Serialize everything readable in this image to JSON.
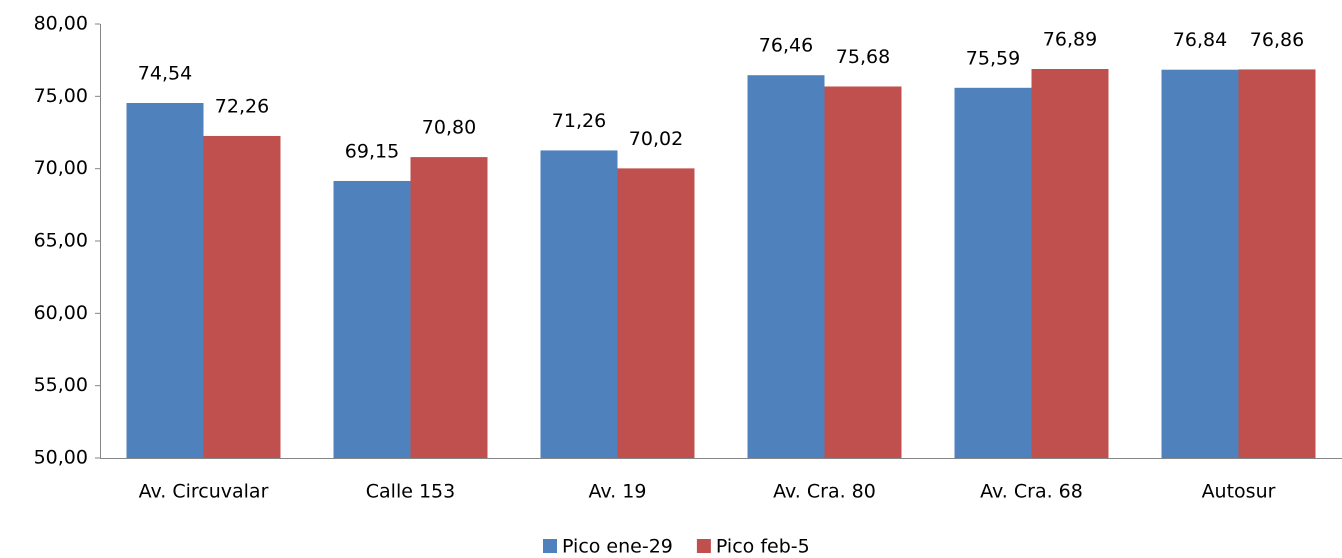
{
  "chart_data": {
    "type": "bar",
    "categories": [
      "Av. Circuvalar",
      "Calle 153",
      "Av. 19",
      "Av. Cra. 80",
      "Av. Cra. 68",
      "Autosur"
    ],
    "series": [
      {
        "name": "Pico ene-29",
        "color": "#4f81bd",
        "values": [
          74.54,
          69.15,
          71.26,
          76.46,
          75.59,
          76.84
        ],
        "value_labels": [
          "74,54",
          "69,15",
          "71,26",
          "76,46",
          "75,59",
          "76,84"
        ]
      },
      {
        "name": "Pico feb-5",
        "color": "#c0504d",
        "values": [
          72.26,
          70.8,
          70.02,
          75.68,
          76.89,
          76.86
        ],
        "value_labels": [
          "72,26",
          "70,80",
          "70,02",
          "75,68",
          "76,89",
          "76,86"
        ]
      }
    ],
    "ylim": [
      50,
      80
    ],
    "yticks": [
      {
        "value": 50,
        "label": "50,00"
      },
      {
        "value": 55,
        "label": "55,00"
      },
      {
        "value": 60,
        "label": "60,00"
      },
      {
        "value": 65,
        "label": "65,00"
      },
      {
        "value": 70,
        "label": "70,00"
      },
      {
        "value": 75,
        "label": "75,00"
      },
      {
        "value": 80,
        "label": "80,00"
      }
    ],
    "grid": false,
    "legend": "bottom"
  }
}
